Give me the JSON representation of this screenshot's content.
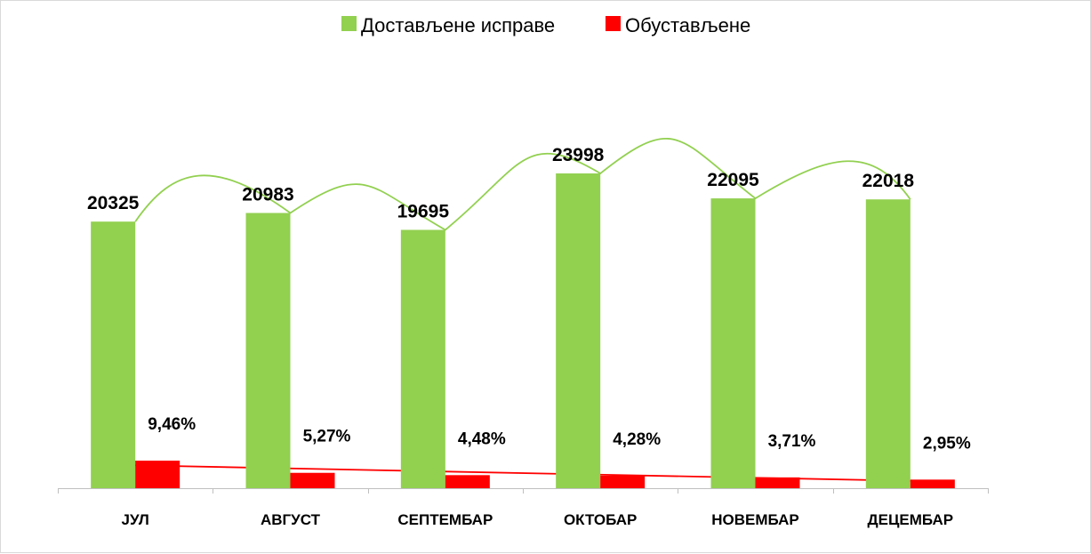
{
  "chart_data": {
    "type": "bar",
    "categories": [
      "ЈУЛ",
      "АВГУСТ",
      "СЕПТЕМБАР",
      "ОКТОБАР",
      "НОВЕМБАР",
      "ДЕЦЕМБАР"
    ],
    "series": [
      {
        "name": "Достављене исправе",
        "values": [
          20325,
          20983,
          19695,
          23998,
          22095,
          22018
        ],
        "labels": [
          "20325",
          "20983",
          "19695",
          "23998",
          "22095",
          "22018"
        ],
        "color": "#92d050"
      },
      {
        "name": "Обустављене",
        "values": [
          9.46,
          5.27,
          4.48,
          4.28,
          3.71,
          2.95
        ],
        "labels": [
          "9,46%",
          "5,27%",
          "4,48%",
          "4,28%",
          "3,71%",
          "2,95%"
        ],
        "color": "#ff0000"
      }
    ],
    "trendlines": [
      {
        "series": "Достављене исправе",
        "style": "smooth curve",
        "color": "#92d050"
      },
      {
        "series": "Обустављене",
        "style": "linear",
        "color": "#ff0000"
      }
    ],
    "legend_position": "top-center",
    "grid": false,
    "title": "",
    "xlabel": "",
    "ylabel": ""
  }
}
